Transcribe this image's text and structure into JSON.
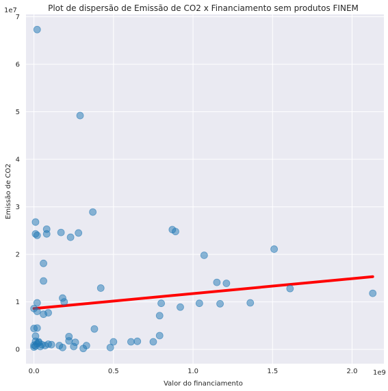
{
  "chart_data": {
    "type": "scatter",
    "title": "Plot de dispersão de Emissão de CO2 x Financiamento sem produtos FINEM",
    "xlabel": "Valor do financiamento",
    "ylabel": "Emissão de CO2",
    "x_offset_label": "1e9",
    "y_offset_label": "1e7",
    "xlim": [
      -0.05,
      2.2
    ],
    "ylim": [
      -0.3,
      7.05
    ],
    "x_ticks": [
      0.0,
      0.5,
      1.0,
      1.5,
      2.0
    ],
    "x_tick_labels": [
      "0.0",
      "0.5",
      "1.0",
      "1.5",
      "2.0"
    ],
    "y_ticks": [
      0,
      1,
      2,
      3,
      4,
      5,
      6,
      7
    ],
    "y_tick_labels": [
      "0",
      "1",
      "2",
      "3",
      "4",
      "5",
      "6",
      "7"
    ],
    "grid": true,
    "point_color": "#1f77b4",
    "line_color": "#ff0000",
    "background_color": "#eaeaf2",
    "points": [
      {
        "x": 0.02,
        "y": 6.73
      },
      {
        "x": 0.29,
        "y": 4.92
      },
      {
        "x": 0.37,
        "y": 2.89
      },
      {
        "x": 0.01,
        "y": 2.68
      },
      {
        "x": 0.08,
        "y": 2.53
      },
      {
        "x": 0.87,
        "y": 2.52
      },
      {
        "x": 0.89,
        "y": 2.48
      },
      {
        "x": 0.17,
        "y": 2.46
      },
      {
        "x": 0.28,
        "y": 2.45
      },
      {
        "x": 0.01,
        "y": 2.43
      },
      {
        "x": 0.08,
        "y": 2.43
      },
      {
        "x": 0.02,
        "y": 2.4
      },
      {
        "x": 0.23,
        "y": 2.36
      },
      {
        "x": 1.51,
        "y": 2.11
      },
      {
        "x": 1.07,
        "y": 1.98
      },
      {
        "x": 0.06,
        "y": 1.81
      },
      {
        "x": 0.06,
        "y": 1.44
      },
      {
        "x": 1.15,
        "y": 1.41
      },
      {
        "x": 1.21,
        "y": 1.39
      },
      {
        "x": 0.42,
        "y": 1.29
      },
      {
        "x": 1.61,
        "y": 1.28
      },
      {
        "x": 2.13,
        "y": 1.18
      },
      {
        "x": 0.18,
        "y": 1.08
      },
      {
        "x": 0.19,
        "y": 1.0
      },
      {
        "x": 0.02,
        "y": 0.98
      },
      {
        "x": 0.8,
        "y": 0.97
      },
      {
        "x": 1.04,
        "y": 0.97
      },
      {
        "x": 1.36,
        "y": 0.98
      },
      {
        "x": 1.17,
        "y": 0.96
      },
      {
        "x": 0.92,
        "y": 0.89
      },
      {
        "x": 0.0,
        "y": 0.86
      },
      {
        "x": 0.02,
        "y": 0.8
      },
      {
        "x": 0.09,
        "y": 0.77
      },
      {
        "x": 0.06,
        "y": 0.74
      },
      {
        "x": 0.79,
        "y": 0.71
      },
      {
        "x": 0.02,
        "y": 0.45
      },
      {
        "x": 0.0,
        "y": 0.44
      },
      {
        "x": 0.38,
        "y": 0.43
      },
      {
        "x": 0.01,
        "y": 0.28
      },
      {
        "x": 0.79,
        "y": 0.29
      },
      {
        "x": 0.22,
        "y": 0.27
      },
      {
        "x": 0.22,
        "y": 0.18
      },
      {
        "x": 0.5,
        "y": 0.16
      },
      {
        "x": 0.26,
        "y": 0.15
      },
      {
        "x": 0.61,
        "y": 0.16
      },
      {
        "x": 0.65,
        "y": 0.17
      },
      {
        "x": 0.75,
        "y": 0.16
      },
      {
        "x": 0.01,
        "y": 0.17
      },
      {
        "x": 0.03,
        "y": 0.16
      },
      {
        "x": 0.11,
        "y": 0.1
      },
      {
        "x": 0.16,
        "y": 0.08
      },
      {
        "x": 0.33,
        "y": 0.08
      },
      {
        "x": 0.05,
        "y": 0.1
      },
      {
        "x": 0.07,
        "y": 0.08
      },
      {
        "x": 0.25,
        "y": 0.06
      },
      {
        "x": 0.01,
        "y": 0.07
      },
      {
        "x": 0.04,
        "y": 0.06
      },
      {
        "x": 0.18,
        "y": 0.04
      },
      {
        "x": 0.48,
        "y": 0.04
      },
      {
        "x": 0.31,
        "y": 0.02
      },
      {
        "x": 0.0,
        "y": 0.05
      },
      {
        "x": 0.02,
        "y": 0.12
      },
      {
        "x": 0.03,
        "y": 0.14
      },
      {
        "x": 0.09,
        "y": 0.11
      },
      {
        "x": 0.0,
        "y": 0.09
      }
    ],
    "trend_line": {
      "x": [
        0.0,
        2.13
      ],
      "y": [
        0.86,
        1.53
      ]
    }
  }
}
